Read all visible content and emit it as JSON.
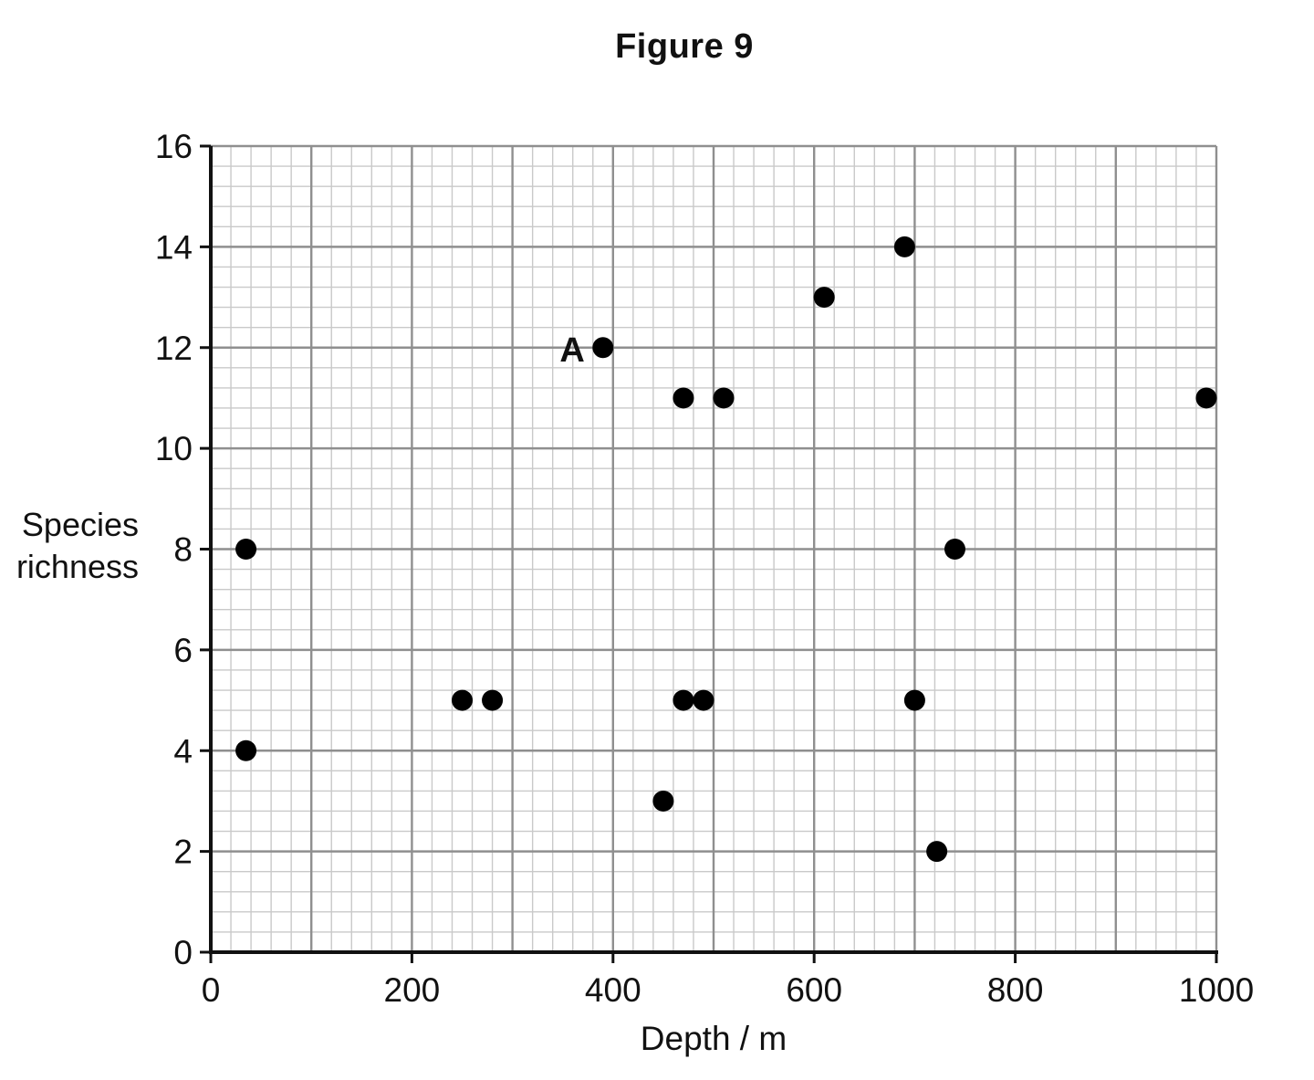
{
  "chart_data": {
    "type": "scatter",
    "title": "Figure 9",
    "xlabel": "Depth / m",
    "ylabel_lines": [
      "Species",
      "richness"
    ],
    "xlim": [
      0,
      1000
    ],
    "ylim": [
      0,
      16
    ],
    "x_ticks": [
      0,
      200,
      400,
      600,
      800,
      1000
    ],
    "y_ticks": [
      0,
      2,
      4,
      6,
      8,
      10,
      12,
      14,
      16
    ],
    "grid": true,
    "grid_style": "graph paper (major every 100 m / 2 units, minor every 20 m / 0.4 units)",
    "series": [
      {
        "values": [
          {
            "x": 35,
            "y": 8
          },
          {
            "x": 35,
            "y": 4
          },
          {
            "x": 250,
            "y": 5
          },
          {
            "x": 280,
            "y": 5
          },
          {
            "x": 390,
            "y": 12
          },
          {
            "x": 450,
            "y": 3
          },
          {
            "x": 470,
            "y": 11
          },
          {
            "x": 470,
            "y": 5
          },
          {
            "x": 490,
            "y": 5
          },
          {
            "x": 510,
            "y": 11
          },
          {
            "x": 610,
            "y": 13
          },
          {
            "x": 690,
            "y": 14
          },
          {
            "x": 700,
            "y": 5
          },
          {
            "x": 722,
            "y": 2
          },
          {
            "x": 740,
            "y": 8
          },
          {
            "x": 990,
            "y": 11
          }
        ]
      }
    ],
    "annotations": [
      {
        "text": "A",
        "x": 390,
        "y": 12
      }
    ],
    "marker_color": "#000000",
    "major_grid_color": "#8f8f8f",
    "minor_grid_color": "#c9c9c9",
    "axis_color": "#111111"
  }
}
